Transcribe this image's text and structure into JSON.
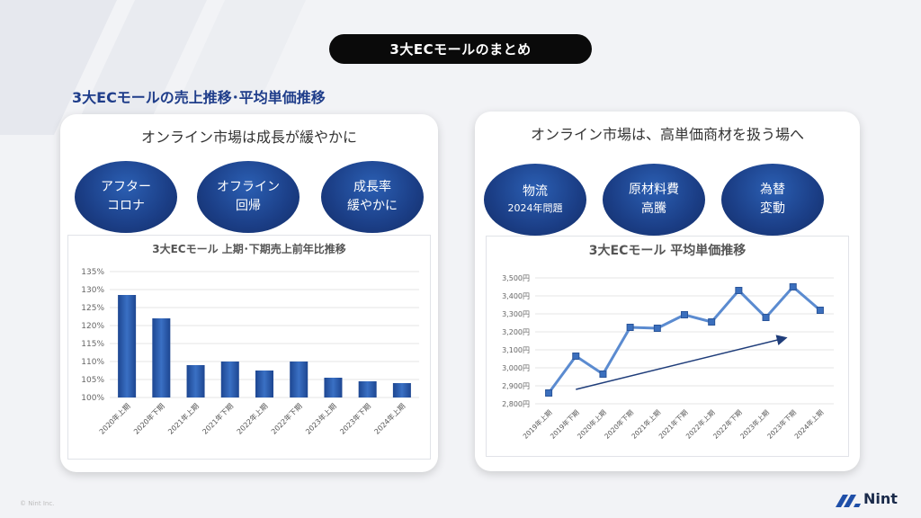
{
  "header": {
    "title": "3大ECモールのまとめ"
  },
  "section": {
    "title": "3大ECモールの売上推移･平均単価推移"
  },
  "left_panel": {
    "heading": "オンライン市場は成長が緩やかに",
    "circles": [
      {
        "line1": "アフター",
        "line2": "コロナ"
      },
      {
        "line1": "オフライン",
        "line2": "回帰"
      },
      {
        "line1": "成長率",
        "line2": "緩やかに"
      }
    ]
  },
  "right_panel": {
    "heading": "オンライン市場は、高単価商材を扱う場へ",
    "circles": [
      {
        "line1": "物流",
        "line2": "2024年問題"
      },
      {
        "line1": "原材料費",
        "line2": "高騰"
      },
      {
        "line1": "為替",
        "line2": "変動"
      }
    ]
  },
  "chart_data": [
    {
      "type": "bar",
      "title": "3大ECモール 上期･下期売上前年比推移",
      "categories": [
        "2020年上期",
        "2020年下期",
        "2021年上期",
        "2021年下期",
        "2022年上期",
        "2022年下期",
        "2023年上期",
        "2023年下期",
        "2024年上期"
      ],
      "values": [
        128.5,
        122,
        109,
        110,
        107.5,
        110,
        105.5,
        104.5,
        104
      ],
      "yticks": [
        "100%",
        "105%",
        "110%",
        "115%",
        "120%",
        "125%",
        "130%",
        "135%"
      ],
      "ylim": [
        100,
        135
      ],
      "grid": true,
      "color": "#2e5eb0"
    },
    {
      "type": "line",
      "title": "3大ECモール 平均単価推移",
      "categories": [
        "2019年上期",
        "2019年下期",
        "2020年上期",
        "2020年下期",
        "2021年上期",
        "2021年下期",
        "2022年上期",
        "2022年下期",
        "2023年上期",
        "2023年下期",
        "2024年上期"
      ],
      "values": [
        2860,
        3065,
        2965,
        3225,
        3220,
        3295,
        3255,
        3430,
        3280,
        3450,
        3320
      ],
      "yticks": [
        "2,800円",
        "2,900円",
        "3,000円",
        "3,100円",
        "3,200円",
        "3,300円",
        "3,400円",
        "3,500円"
      ],
      "ylim": [
        2800,
        3500
      ],
      "grid": true,
      "color": "#5b8bd0",
      "trend_arrow": true
    }
  ],
  "footer": {
    "copyright": "© Nint Inc.",
    "logo_text": "Nint"
  }
}
